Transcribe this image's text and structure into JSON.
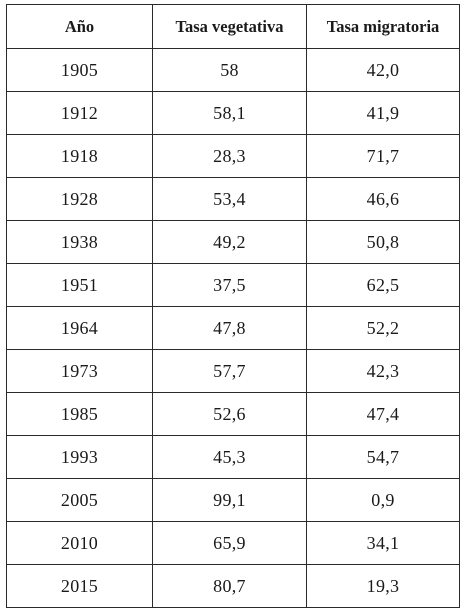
{
  "table": {
    "headers": [
      "Año",
      "Tasa vegetativa",
      "Tasa migratoria"
    ],
    "rows": [
      [
        "1905",
        "58",
        "42,0"
      ],
      [
        "1912",
        "58,1",
        "41,9"
      ],
      [
        "1918",
        "28,3",
        "71,7"
      ],
      [
        "1928",
        "53,4",
        "46,6"
      ],
      [
        "1938",
        "49,2",
        "50,8"
      ],
      [
        "1951",
        "37,5",
        "62,5"
      ],
      [
        "1964",
        "47,8",
        "52,2"
      ],
      [
        "1973",
        "57,7",
        "42,3"
      ],
      [
        "1985",
        "52,6",
        "47,4"
      ],
      [
        "1993",
        "45,3",
        "54,7"
      ],
      [
        "2005",
        "99,1",
        "0,9"
      ],
      [
        "2010",
        "65,9",
        "34,1"
      ],
      [
        "2015",
        "80,7",
        "19,3"
      ]
    ]
  }
}
